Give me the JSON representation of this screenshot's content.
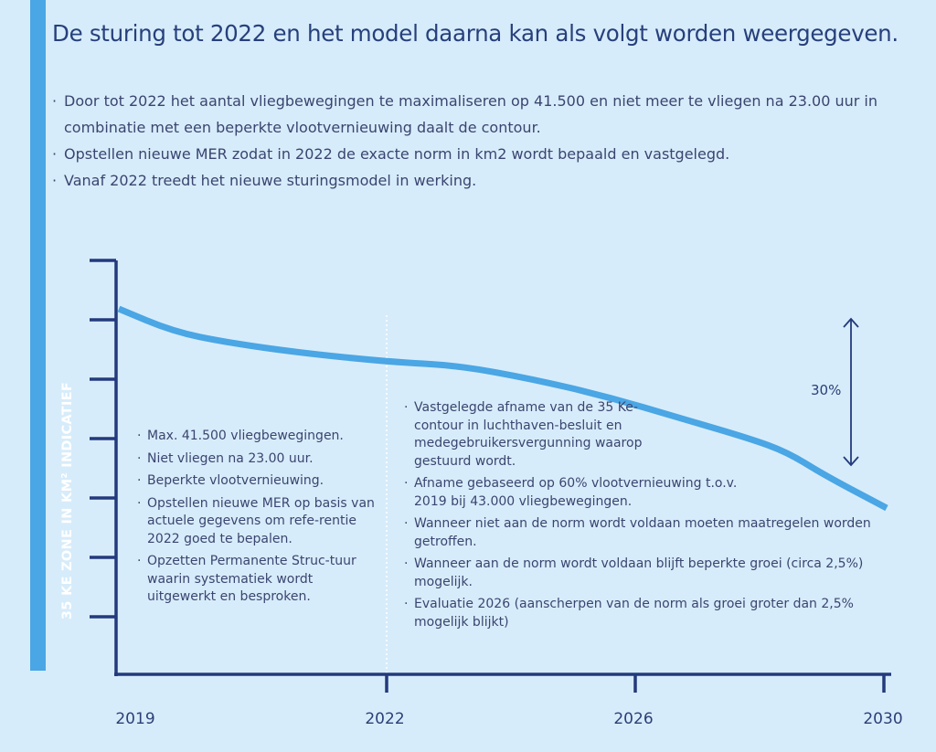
{
  "title": "De sturing tot 2022 en het model daarna kan als volgt worden weergegeven.",
  "intro": [
    "Door tot 2022 het aantal vliegbewegingen te maximaliseren op 41.500 en niet meer te vliegen na 23.00 uur in combinatie met een beperkte vlootvernieuwing daalt de contour.",
    "Opstellen nieuwe MER zodat in 2022 de exacte norm in km2 wordt bepaald en vastgelegd.",
    "Vanaf 2022 treedt het nieuwe sturingsmodel in werking."
  ],
  "notes_before_2022": [
    "Max. 41.500 vliegbewegingen.",
    "Niet vliegen na 23.00 uur.",
    "Beperkte vlootvernieuwing.",
    "Opstellen nieuwe MER op basis van actuele gegevens om refe-rentie 2022 goed te bepalen.",
    "Opzetten Permanente Struc-tuur waarin systematiek wordt uitgewerkt en besproken."
  ],
  "notes_after_2022": [
    "Vastgelegde afname van de 35 Ke-contour in luchthaven-besluit en medegebruikersvergunning waarop gestuurd wordt.",
    "Afname gebaseerd op 60% vlootvernieuwing t.o.v. 2019 bij 43.000 vliegbewegingen.",
    "Wanneer niet aan de norm wordt voldaan moeten maatregelen worden getroffen.",
    "Wanneer aan de norm wordt voldaan blijft beperkte groei  (circa 2,5%) mogelijk.",
    "Evaluatie 2026 (aanscherpen van de norm als groei groter dan 2,5% mogelijk blijkt)"
  ],
  "colors": {
    "line": "#4aa6e4",
    "axis": "#233a7c",
    "background": "#d7ecfa",
    "sidebar": "#4aa6e4"
  },
  "chart_data": {
    "type": "line",
    "title": "",
    "xlabel": "",
    "ylabel": "35 KE ZONE IN KM² INDICATIEF",
    "x_ticks": [
      2019,
      2022,
      2026,
      2030
    ],
    "x_tick_labels": [
      "2019",
      "2022",
      "2026",
      "2030"
    ],
    "y_tick_count": 7,
    "y_tick_labels": [],
    "grid": false,
    "divider_at": 2022,
    "annotation": {
      "label": "30%",
      "type": "double-arrow"
    },
    "series": [
      {
        "x": [
          2019.0,
          2019.6,
          2020.2,
          2021.0,
          2022.0,
          2023.1,
          2024.3,
          2025.5,
          2026.7,
          2027.8,
          2028.4,
          2029.0,
          2030.0
        ],
        "y": [
          100,
          93.8,
          90.8,
          88,
          85.5,
          84.5,
          80.8,
          76,
          70,
          64.5,
          60.8,
          54.5,
          45.5
        ]
      }
    ]
  }
}
